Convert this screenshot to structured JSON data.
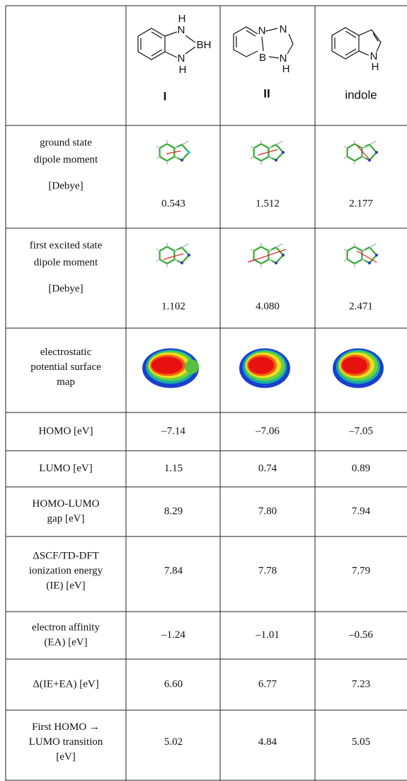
{
  "header": {
    "molecules": [
      {
        "name": "I",
        "atoms": [
          "H",
          "N",
          "BH",
          "N",
          "H"
        ]
      },
      {
        "name": "II",
        "atoms": [
          "N",
          "N",
          "B",
          "N",
          "H"
        ]
      },
      {
        "name": "indole",
        "atoms": [
          "N",
          "H"
        ]
      }
    ]
  },
  "table": {
    "rows": [
      {
        "label": [
          "ground state",
          "dipole moment"
        ],
        "unit": "[Debye]",
        "values": [
          "0.543",
          "1.512",
          "2.177"
        ]
      },
      {
        "label": [
          "first excited state",
          "dipole moment"
        ],
        "unit": "[Debye]",
        "values": [
          "1.102",
          "4.080",
          "2.471"
        ]
      },
      {
        "label": [
          "electrostatic",
          "potential surface",
          "map"
        ]
      },
      {
        "label": [
          "HOMO [eV]"
        ],
        "values": [
          "–7.14",
          "–7.06",
          "–7.05"
        ]
      },
      {
        "label": [
          "LUMO [eV]"
        ],
        "values": [
          "1.15",
          "0.74",
          "0.89"
        ]
      },
      {
        "label": [
          "HOMO-LUMO",
          "gap [eV]"
        ],
        "values": [
          "8.29",
          "7.80",
          "7.94"
        ]
      },
      {
        "label": [
          "ΔSCF/TD-DFT",
          "ionization energy",
          "(IE) [eV]"
        ],
        "values": [
          "7.84",
          "7.78",
          "7.79"
        ]
      },
      {
        "label": [
          "electron affinity",
          "(EA) [eV]"
        ],
        "values": [
          "–1.24",
          "–1.01",
          "–0.56"
        ]
      },
      {
        "label": [
          "Δ(IE+EA) [eV]"
        ],
        "values": [
          "6.60",
          "6.77",
          "7.23"
        ]
      },
      {
        "label": [
          "First HOMO →",
          "LUMO transition",
          "[eV]"
        ],
        "values": [
          "5.02",
          "4.84",
          "5.05"
        ]
      }
    ]
  }
}
